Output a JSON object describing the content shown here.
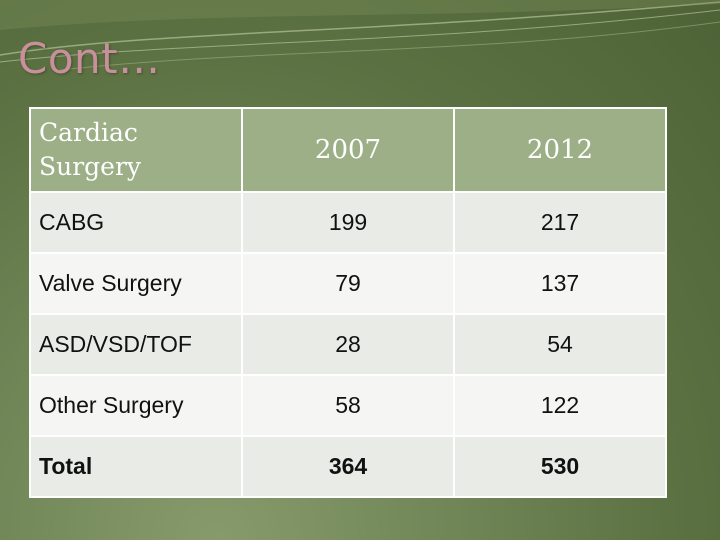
{
  "slide": {
    "title": "Cont…"
  },
  "table": {
    "header": {
      "first": "Cardiac Surgery",
      "years": [
        "2007",
        "2012"
      ]
    },
    "rows": [
      {
        "label": "CABG",
        "v2007": "199",
        "v2012": "217"
      },
      {
        "label": "Valve Surgery",
        "v2007": "79",
        "v2012": "137"
      },
      {
        "label": "ASD/VSD/TOF",
        "v2007": "28",
        "v2012": "54"
      },
      {
        "label": "Other Surgery",
        "v2007": "58",
        "v2012": "122"
      },
      {
        "label": "Total",
        "v2007": "364",
        "v2012": "530"
      }
    ]
  },
  "colors": {
    "background": "#5b7142",
    "title": "#c98f9c",
    "header_fill": "#9caf87",
    "row_fill_light": "#e9ebe6",
    "row_fill_lighter": "#f5f6f3"
  }
}
